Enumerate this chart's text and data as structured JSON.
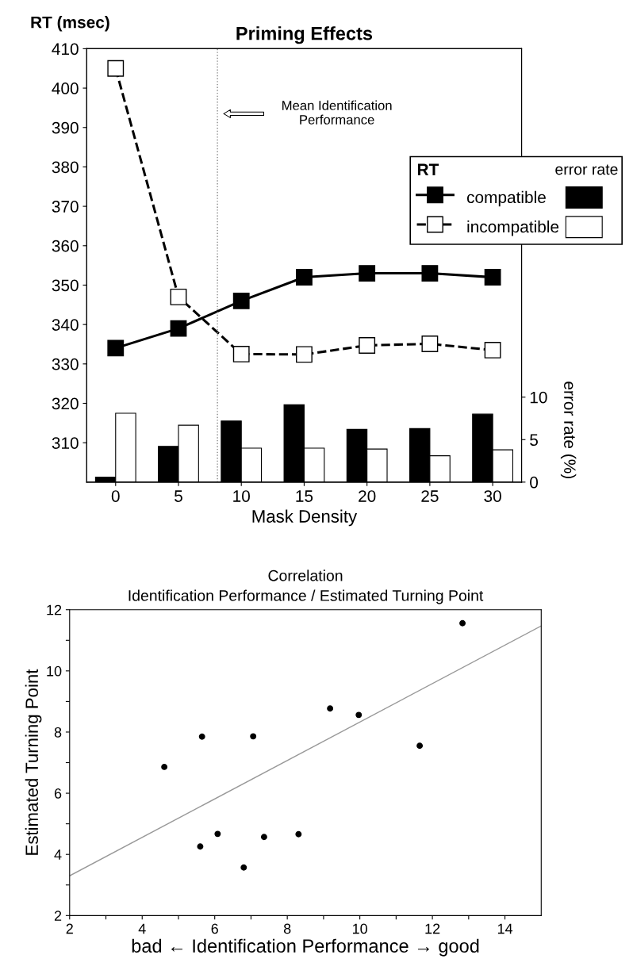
{
  "chart_data": [
    {
      "type": "line",
      "title": "Priming Effects",
      "xlabel": "Mask Density",
      "ylabel": "RT (msec)",
      "y2label": "error rate (%)",
      "legend_title": "RT",
      "x": [
        0,
        5,
        10,
        15,
        20,
        25,
        30
      ],
      "xlim": [
        -2.3,
        32.3
      ],
      "xticks": [
        0,
        5,
        10,
        15,
        20,
        25,
        30
      ],
      "ylim": [
        300,
        410
      ],
      "yticks": [
        310,
        320,
        330,
        340,
        350,
        360,
        370,
        380,
        390,
        400,
        410
      ],
      "y2lim": [
        0,
        51
      ],
      "y2ticks": [
        0,
        5,
        10
      ],
      "series": [
        {
          "name": "compatible",
          "color": "#000000",
          "marker": "square",
          "line_style": "solid",
          "values": [
            334,
            339,
            346,
            352,
            353,
            353,
            352
          ]
        },
        {
          "name": "incompatible",
          "color": "#ffffff",
          "marker": "square",
          "line_style": "dashed",
          "values": [
            405,
            347,
            332.5,
            332.4,
            334.7,
            335.1,
            333.5
          ]
        },
        {
          "type": "bar",
          "axis": "y2",
          "color": "#000000",
          "values": [
            0.6,
            4.2,
            7.2,
            9.1,
            6.2,
            6.3,
            8.0
          ]
        },
        {
          "type": "bar",
          "axis": "y2",
          "color": "#ffffff",
          "values": [
            8.1,
            6.7,
            4.0,
            4.0,
            3.9,
            3.1,
            3.8
          ]
        }
      ],
      "ref_lines": [
        {
          "axis": "x",
          "value": 8.1,
          "color": "#888888",
          "line_style": "dotted"
        }
      ],
      "annotations": [
        "Mean Identification\nPerformance",
        "error rate"
      ],
      "legend": "top right",
      "grid": false
    },
    {
      "type": "scatter",
      "title": "Correlation",
      "subtitle": "Identification Performance / Estimated Turning Point",
      "xlabel": "bad ← Identification Performance → good",
      "ylabel": "Estimated Turning Point",
      "xlim": [
        2,
        15
      ],
      "ylim": [
        2,
        12
      ],
      "xticks": [
        2,
        {
          "value": 3,
          "label": null
        },
        4,
        {
          "value": 5,
          "label": null
        },
        6,
        {
          "value": 7,
          "label": null
        },
        8,
        {
          "value": 9,
          "label": null
        },
        10,
        {
          "value": 11,
          "label": null
        },
        12,
        {
          "value": 13,
          "label": null
        },
        14
      ],
      "yticks": [
        2,
        {
          "value": 3,
          "label": null
        },
        4,
        {
          "value": 5,
          "label": null
        },
        6,
        {
          "value": 7,
          "label": null
        },
        8,
        {
          "value": 9,
          "label": null
        },
        10,
        {
          "value": 11,
          "label": null
        },
        12
      ],
      "series": [
        {
          "color": "#000000",
          "marker": "circle",
          "x": [
            4.61,
            5.65,
            7.06,
            9.18,
            9.97,
            11.65,
            12.83,
            5.6,
            6.08,
            6.8,
            7.36,
            8.31
          ],
          "values": [
            6.86,
            7.85,
            7.86,
            8.77,
            8.56,
            7.55,
            11.56,
            4.26,
            4.67,
            3.57,
            4.57,
            4.66
          ]
        },
        {
          "type": "line",
          "color": "#999999",
          "marker": "none",
          "line_style": "solid",
          "x": [
            2,
            15
          ],
          "values": [
            3.3,
            11.47
          ]
        }
      ],
      "grid": false
    }
  ]
}
